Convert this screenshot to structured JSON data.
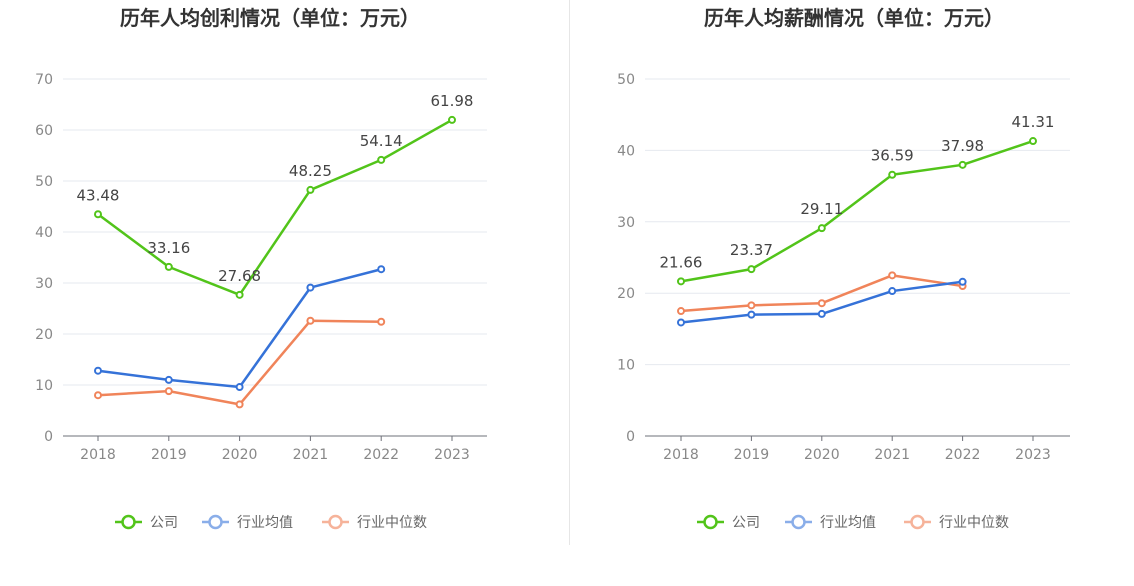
{
  "colors": {
    "company": "#52c41a",
    "industry_avg": "#3572d8",
    "industry_median": "#f0845a",
    "legend_avg": "#8aaee9",
    "legend_median": "#f6b39a"
  },
  "chart_data": [
    {
      "type": "line",
      "title": "历年人均创利情况（单位：万元）",
      "categories": [
        "2018",
        "2019",
        "2020",
        "2021",
        "2022",
        "2023"
      ],
      "ylim": [
        0,
        70
      ],
      "yticks": [
        0,
        10,
        20,
        30,
        40,
        50,
        60,
        70
      ],
      "grid": true,
      "legend_position": "bottom",
      "series": [
        {
          "name": "公司",
          "values": [
            43.48,
            33.16,
            27.68,
            48.25,
            54.14,
            61.98
          ],
          "labels": [
            "43.48",
            "33.16",
            "27.68",
            "48.25",
            "54.14",
            "61.98"
          ]
        },
        {
          "name": "行业均值",
          "values": [
            12.8,
            11.0,
            9.6,
            29.1,
            32.7,
            null
          ]
        },
        {
          "name": "行业中位数",
          "values": [
            8.0,
            8.8,
            6.2,
            22.6,
            22.4,
            null
          ]
        }
      ]
    },
    {
      "type": "line",
      "title": "历年人均薪酬情况（单位：万元）",
      "categories": [
        "2018",
        "2019",
        "2020",
        "2021",
        "2022",
        "2023"
      ],
      "ylim": [
        0,
        50
      ],
      "yticks": [
        0,
        10,
        20,
        30,
        40,
        50
      ],
      "grid": true,
      "legend_position": "bottom",
      "series": [
        {
          "name": "公司",
          "values": [
            21.66,
            23.37,
            29.11,
            36.59,
            37.98,
            41.31
          ],
          "labels": [
            "21.66",
            "23.37",
            "29.11",
            "36.59",
            "37.98",
            "41.31"
          ]
        },
        {
          "name": "行业均值",
          "values": [
            15.9,
            17.0,
            17.1,
            20.3,
            21.6,
            null
          ]
        },
        {
          "name": "行业中位数",
          "values": [
            17.5,
            18.3,
            18.6,
            22.5,
            21.0,
            null
          ]
        }
      ]
    }
  ]
}
